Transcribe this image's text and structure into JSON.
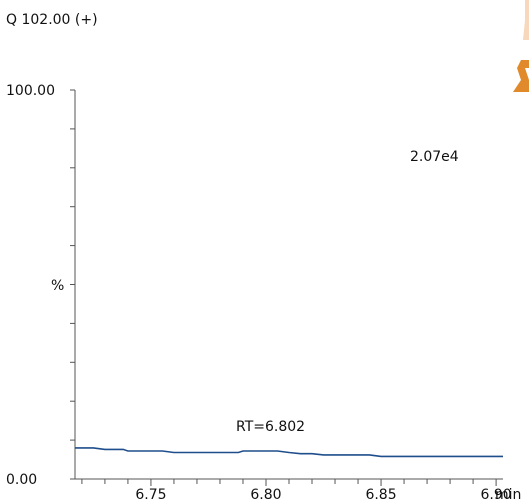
{
  "chart_data": {
    "type": "line",
    "title": "Q 102.00 (+)",
    "intensity_label": "2.07e4",
    "annotation": "RT=6.802",
    "ylabel": "%",
    "y_tick_labels": [
      "100.00",
      "0.00"
    ],
    "ylim": [
      0,
      100
    ],
    "xlim": [
      6.717,
      6.903
    ],
    "x_tick_labels": [
      "6.75",
      "6.80",
      "6.85",
      "6.90"
    ],
    "x_unit": "min",
    "grid": false,
    "line_color": "#1f4e8c",
    "series": [
      {
        "x": [
          6.717,
          6.725,
          6.73,
          6.738,
          6.74,
          6.755,
          6.76,
          6.788,
          6.79,
          6.805,
          6.81,
          6.815,
          6.82,
          6.825,
          6.83,
          6.845,
          6.85,
          6.903
        ],
        "values": [
          8.0,
          8.0,
          7.6,
          7.6,
          7.2,
          7.2,
          6.8,
          6.8,
          7.2,
          7.2,
          6.8,
          6.5,
          6.5,
          6.2,
          6.2,
          6.2,
          5.8,
          5.8
        ]
      }
    ]
  }
}
